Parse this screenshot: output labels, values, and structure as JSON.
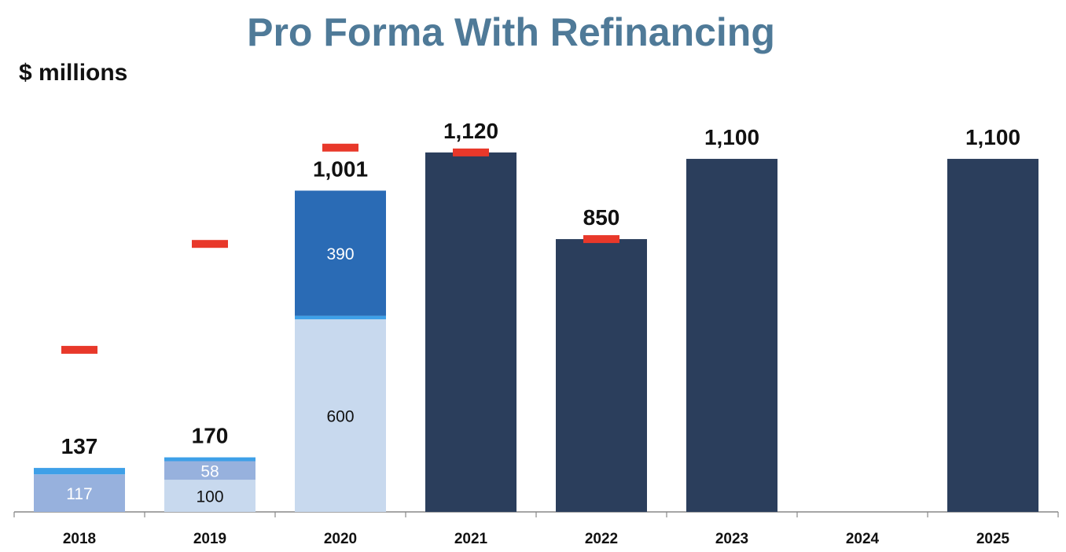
{
  "title": "Pro Forma With Refinancing",
  "unit_label": "$ millions",
  "colors": {
    "title": "#4f7a98",
    "dark_navy": "#2b3e5c",
    "medium_blue": "#2a6bb5",
    "light_blue": "#c8d9ee",
    "mid_light_blue": "#97b1dd",
    "cap_blue": "#3ea0e8",
    "marker_red": "#e8382a",
    "axis": "#888888"
  },
  "chart_data": {
    "type": "bar",
    "stacked": true,
    "categories": [
      "2018",
      "2019",
      "2020",
      "2021",
      "2022",
      "2023",
      "2024",
      "2025"
    ],
    "series": [
      {
        "values": [
          117,
          100,
          600,
          0,
          0,
          0,
          0,
          0
        ],
        "colors": [
          "#97b1dd",
          "#c8d9ee",
          "#c8d9ee",
          null,
          null,
          null,
          null,
          null
        ],
        "labels": [
          "117",
          "100",
          "600",
          null,
          null,
          null,
          null,
          null
        ],
        "label_colors": [
          "#ffffff",
          "#111111",
          "#111111",
          null,
          null,
          null,
          null,
          null
        ]
      },
      {
        "values": [
          0,
          58,
          0,
          0,
          0,
          0,
          0,
          0
        ],
        "colors": [
          null,
          "#97b1dd",
          null,
          null,
          null,
          null,
          null,
          null
        ],
        "labels": [
          null,
          "58",
          null,
          null,
          null,
          null,
          null,
          null
        ],
        "label_colors": [
          null,
          "#ffffff",
          null,
          null,
          null,
          null,
          null,
          null
        ]
      },
      {
        "values": [
          20,
          12,
          11,
          0,
          0,
          0,
          0,
          0
        ],
        "colors": [
          "#3ea0e8",
          "#3ea0e8",
          "#3ea0e8",
          null,
          null,
          null,
          null,
          null
        ],
        "labels": [
          null,
          null,
          null,
          null,
          null,
          null,
          null,
          null
        ],
        "label_colors": [
          null,
          null,
          null,
          null,
          null,
          null,
          null,
          null
        ]
      },
      {
        "values": [
          0,
          0,
          390,
          0,
          0,
          0,
          0,
          0
        ],
        "colors": [
          null,
          null,
          "#2a6bb5",
          null,
          null,
          null,
          null,
          null
        ],
        "labels": [
          null,
          null,
          "390",
          null,
          null,
          null,
          null,
          null
        ],
        "label_colors": [
          null,
          null,
          "#ffffff",
          null,
          null,
          null,
          null,
          null
        ]
      },
      {
        "values": [
          0,
          0,
          0,
          1120,
          850,
          1100,
          0,
          1100
        ],
        "colors": [
          null,
          null,
          null,
          "#2b3e5c",
          "#2b3e5c",
          "#2b3e5c",
          null,
          "#2b3e5c"
        ],
        "labels": [
          null,
          null,
          null,
          null,
          null,
          null,
          null,
          null
        ],
        "label_colors": [
          null,
          null,
          null,
          null,
          null,
          null,
          null,
          null
        ]
      }
    ],
    "totals": [
      137,
      170,
      1001,
      1120,
      850,
      1100,
      null,
      1100
    ],
    "total_labels": [
      "137",
      "170",
      "1,001",
      "1,120",
      "850",
      "1,100",
      "",
      "1,100"
    ],
    "markers": [
      505,
      835,
      1135,
      1120,
      850,
      null,
      null,
      null
    ],
    "ylim": [
      0,
      1350
    ],
    "grid": false,
    "legend": "none"
  }
}
